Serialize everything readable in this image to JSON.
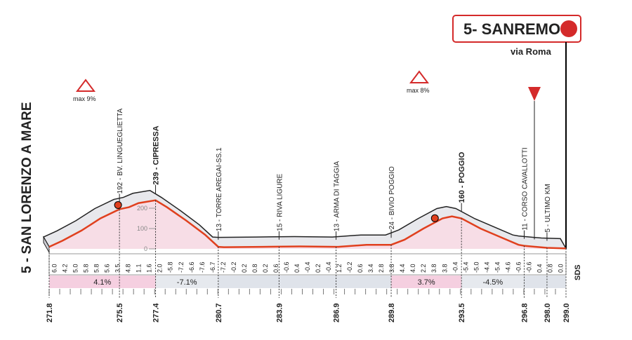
{
  "chart_data": {
    "type": "area",
    "start_label": "5 - SAN LORENZO A MARE",
    "finish_label": "5- SANREMO",
    "finish_sublabel": "via Roma",
    "climb_labels": [
      "max 9%",
      "max 8%"
    ],
    "sds_label": "SDS",
    "x": [
      271.8,
      272.5,
      273.5,
      274.5,
      275.5,
      276.0,
      276.5,
      277.4,
      278.0,
      279.0,
      280.0,
      280.7,
      281.0,
      283.0,
      285.0,
      287.0,
      288.5,
      289.8,
      290.5,
      291.5,
      292.5,
      293.0,
      293.5,
      294.5,
      295.5,
      296.5,
      296.8,
      298.0,
      299.0
    ],
    "values": [
      10,
      40,
      90,
      150,
      195,
      205,
      225,
      239,
      205,
      140,
      70,
      10,
      8,
      10,
      12,
      10,
      20,
      20,
      45,
      100,
      150,
      160,
      150,
      100,
      60,
      20,
      15,
      5,
      2
    ],
    "color": "#e0401e",
    "fill": "#f7dde6",
    "xlim": [
      271.8,
      299.0
    ],
    "ylim": [
      0,
      300
    ],
    "yticks": [
      0,
      100,
      200
    ],
    "xticks": [
      271.8,
      275.5,
      277.4,
      280.7,
      283.9,
      286.9,
      289.8,
      293.5,
      296.8,
      {
        "value": 298,
        "label": "298.0"
      },
      {
        "value": 299,
        "label": "299.0"
      }
    ],
    "waypoints": [
      "192 - BV. LINGUEGLIETTA",
      "239 - CIPRESSA",
      "13 - TORRE AREGAI-SS.1",
      "15 - RIVA LIGURE",
      "13 - ARMA DI TAGGIA",
      "24 - BIVIO POGGIO",
      "160 - POGGIO",
      "11 - CORSO CAVALLOTTI",
      "5 - ULTIMO KM"
    ],
    "gradient_labels": [
      "6.0",
      "4.2",
      "5.0",
      "5.8",
      "5.8",
      "5.6",
      "3.5",
      "4.8",
      "1.1",
      "1.6",
      "2.0",
      "-5.8",
      "-7.2",
      "-6.6",
      "-7.6",
      "-6.7",
      "-7.2",
      "-0.2",
      "0.2",
      "0.8",
      "0.2",
      "0.6",
      "-0.6",
      "0.4",
      "-0.4",
      "0.2",
      "-0.4",
      "1.2",
      "-0.2",
      "0.6",
      "3.4",
      "2.8",
      "3.8",
      "4.4",
      "4.0",
      "2.2",
      "3.8",
      "3.8",
      "-0.4",
      "-5.4",
      "-5.0",
      "-4.4",
      "-5.4",
      "-4.6",
      "-0.6",
      "-0.6",
      "0.4",
      "0.8",
      "0.0"
    ],
    "segments": [
      "4.1%",
      "-7.1%",
      "3.7%",
      "-4.5%"
    ]
  }
}
